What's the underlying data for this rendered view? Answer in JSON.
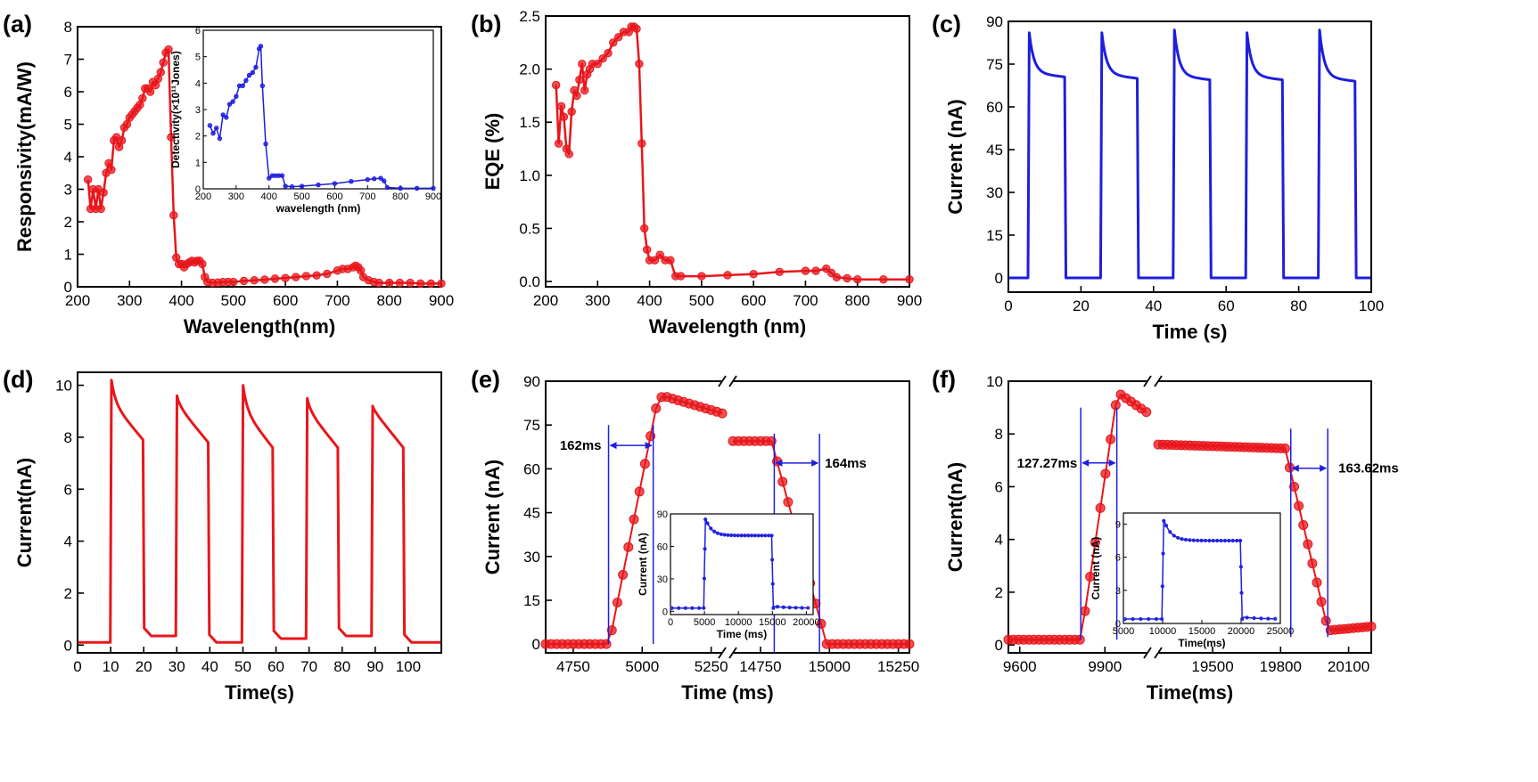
{
  "chart_data": [
    {
      "panel": "(a)",
      "type": "line",
      "xlabel": "Wavelength(nm)",
      "ylabel": "Responsivity(mA/W)",
      "xlim": [
        200,
        900
      ],
      "ylim": [
        0,
        8
      ],
      "xticks": [
        200,
        300,
        400,
        500,
        600,
        700,
        800,
        900
      ],
      "yticks": [
        0,
        1,
        2,
        3,
        4,
        5,
        6,
        7,
        8
      ],
      "color": "#e8161b",
      "markers": true,
      "series": [
        {
          "x": [
            220,
            225,
            230,
            235,
            240,
            245,
            250,
            255,
            260,
            265,
            270,
            275,
            280,
            285,
            290,
            295,
            300,
            305,
            310,
            315,
            320,
            325,
            330,
            335,
            340,
            345,
            350,
            355,
            360,
            365,
            370,
            375,
            380,
            385,
            390,
            395,
            400,
            405,
            410,
            415,
            420,
            425,
            430,
            435,
            440,
            445,
            450,
            460,
            470,
            480,
            490,
            500,
            520,
            540,
            560,
            580,
            600,
            620,
            640,
            660,
            680,
            700,
            710,
            720,
            730,
            735,
            740,
            745,
            750,
            760,
            770,
            780,
            800,
            820,
            840,
            860,
            880,
            900
          ],
          "y": [
            3.3,
            2.4,
            3.0,
            2.4,
            3.0,
            2.4,
            2.9,
            3.5,
            3.8,
            3.6,
            4.5,
            4.6,
            4.3,
            4.5,
            4.9,
            5.0,
            5.2,
            5.3,
            5.4,
            5.5,
            5.6,
            5.8,
            6.1,
            6.1,
            6.0,
            6.3,
            6.2,
            6.4,
            6.6,
            6.9,
            7.2,
            7.3,
            4.6,
            2.2,
            0.9,
            0.7,
            0.7,
            0.6,
            0.7,
            0.75,
            0.8,
            0.75,
            0.8,
            0.8,
            0.7,
            0.3,
            0.15,
            0.12,
            0.13,
            0.15,
            0.15,
            0.15,
            0.18,
            0.2,
            0.22,
            0.25,
            0.27,
            0.3,
            0.33,
            0.35,
            0.4,
            0.5,
            0.55,
            0.55,
            0.6,
            0.65,
            0.6,
            0.5,
            0.3,
            0.2,
            0.15,
            0.12,
            0.12,
            0.12,
            0.12,
            0.1,
            0.1,
            0.1
          ]
        }
      ],
      "inset": {
        "xlabel": "wavelength (nm)",
        "ylabel": "Detectivity(×10¹¹Jones)",
        "xlim": [
          200,
          900
        ],
        "ylim": [
          0,
          6
        ],
        "xticks": [
          200,
          300,
          400,
          500,
          600,
          700,
          800,
          900
        ],
        "yticks": [
          0,
          1,
          2,
          3,
          4,
          5,
          6
        ],
        "color": "#1e1edc",
        "x": [
          220,
          230,
          240,
          250,
          260,
          270,
          280,
          290,
          300,
          310,
          320,
          330,
          340,
          350,
          360,
          370,
          375,
          380,
          390,
          400,
          410,
          420,
          430,
          440,
          450,
          470,
          500,
          550,
          600,
          650,
          700,
          720,
          740,
          750,
          760,
          800,
          850,
          900
        ],
        "y": [
          2.4,
          2.1,
          2.3,
          1.9,
          2.8,
          2.7,
          3.2,
          3.3,
          3.5,
          3.9,
          3.9,
          4.1,
          4.3,
          4.4,
          4.6,
          5.3,
          5.4,
          3.9,
          1.7,
          0.4,
          0.5,
          0.5,
          0.5,
          0.5,
          0.1,
          0.08,
          0.1,
          0.15,
          0.2,
          0.28,
          0.35,
          0.38,
          0.4,
          0.3,
          0.05,
          0.02,
          0.02,
          0.02
        ]
      }
    },
    {
      "panel": "(b)",
      "type": "line",
      "xlabel": "Wavelength (nm)",
      "ylabel": "EQE (%)",
      "xlim": [
        200,
        900
      ],
      "ylim": [
        -0.05,
        2.5
      ],
      "xticks": [
        200,
        300,
        400,
        500,
        600,
        700,
        800,
        900
      ],
      "yticks": [
        0.0,
        0.5,
        1.0,
        1.5,
        2.0,
        2.5
      ],
      "ytick_labels": [
        "0.0",
        "0.5",
        "1.0",
        "1.5",
        "2.0",
        "2.5"
      ],
      "color": "#e8161b",
      "markers": true,
      "series": [
        {
          "x": [
            220,
            225,
            230,
            235,
            240,
            245,
            250,
            255,
            260,
            265,
            270,
            275,
            280,
            285,
            290,
            300,
            310,
            320,
            330,
            340,
            350,
            360,
            365,
            370,
            375,
            380,
            385,
            390,
            395,
            400,
            410,
            420,
            430,
            440,
            450,
            460,
            500,
            550,
            600,
            650,
            700,
            720,
            740,
            750,
            760,
            780,
            800,
            850,
            900
          ],
          "y": [
            1.85,
            1.3,
            1.65,
            1.55,
            1.25,
            1.2,
            1.6,
            1.8,
            1.75,
            1.9,
            2.05,
            1.8,
            1.95,
            2.0,
            2.05,
            2.05,
            2.1,
            2.15,
            2.25,
            2.3,
            2.35,
            2.35,
            2.4,
            2.4,
            2.38,
            2.05,
            1.3,
            0.5,
            0.3,
            0.2,
            0.2,
            0.25,
            0.2,
            0.2,
            0.05,
            0.05,
            0.05,
            0.06,
            0.07,
            0.09,
            0.1,
            0.1,
            0.12,
            0.08,
            0.04,
            0.03,
            0.02,
            0.02,
            0.02
          ]
        }
      ]
    },
    {
      "panel": "(c)",
      "type": "line",
      "xlabel": "Time (s)",
      "ylabel": "Current (nA)",
      "xlim": [
        0,
        100
      ],
      "ylim": [
        -5,
        90
      ],
      "xticks": [
        0,
        20,
        40,
        60,
        80,
        100
      ],
      "yticks": [
        0,
        15,
        30,
        45,
        60,
        75,
        90
      ],
      "color": "#1e1edc",
      "markers": false,
      "pulses": {
        "on": [
          5.5,
          25.5,
          45.5,
          65.5,
          85.5
        ],
        "off": [
          15.5,
          35.5,
          55.5,
          75.5,
          95.5
        ],
        "peak": [
          86,
          86,
          87,
          86,
          87
        ],
        "plateau": [
          70.5,
          70,
          69.5,
          69.5,
          69
        ],
        "baseline": 0
      }
    },
    {
      "panel": "(d)",
      "type": "line",
      "xlabel": "Time(s)",
      "ylabel": "Current(nA)",
      "xlim": [
        0,
        110
      ],
      "ylim": [
        -0.3,
        10.5
      ],
      "xticks": [
        0,
        10,
        20,
        30,
        40,
        50,
        60,
        70,
        80,
        90,
        100
      ],
      "yticks": [
        0,
        2,
        4,
        6,
        8,
        10
      ],
      "color": "#e8161b",
      "markers": false,
      "pulses": {
        "on": [
          10,
          29.8,
          49.8,
          69.2,
          89
        ],
        "off": [
          19.8,
          39.5,
          59,
          78.7,
          98.5
        ],
        "peak": [
          10.2,
          9.6,
          10.0,
          9.5,
          9.2
        ],
        "plateau": [
          7.9,
          7.8,
          7.6,
          7.6,
          7.6
        ],
        "baseline_after": [
          0.35,
          0.1,
          0.25,
          0.35,
          0.1
        ],
        "baseline": 0.1
      }
    },
    {
      "panel": "(e)",
      "type": "scatter",
      "xlabel": "Time (ms)",
      "ylabel": "Current (nA)",
      "ylim": [
        -3,
        90
      ],
      "yticks": [
        0,
        15,
        30,
        45,
        60,
        75,
        90
      ],
      "broken_x": [
        {
          "xlim": [
            4650,
            5290
          ],
          "xticks": [
            4750,
            5000,
            5250
          ]
        },
        {
          "xlim": [
            14650,
            15290
          ],
          "xticks": [
            14750,
            15000,
            15250
          ]
        }
      ],
      "color": "#e8161b",
      "rise": {
        "label": "162ms",
        "t_start": 4878,
        "t_end": 5040
      },
      "fall": {
        "label": "164ms",
        "t_start": 14800,
        "t_end": 14964
      },
      "segment1": {
        "x_start": 4650,
        "x_step": 20,
        "t_on": 4880,
        "t_peak": 5075,
        "peak": 85,
        "t_end": 5290,
        "end_val": 79
      },
      "segment2": {
        "x_start": 14650,
        "x_step": 20,
        "level_start": 69.5,
        "t_fall": 14790,
        "t_zero": 14990,
        "t_end": 15290
      },
      "inset": {
        "xlabel": "Time (ms)",
        "ylabel": "Current (nA)",
        "xlim": [
          0,
          21000
        ],
        "ylim": [
          -3,
          90
        ],
        "xticks": [
          0,
          5000,
          10000,
          15000,
          20000
        ],
        "yticks": [
          0,
          30,
          60,
          90
        ],
        "color": "#1e1edc",
        "on": 4900,
        "off": 14900,
        "peak": 85,
        "plateau": 70,
        "low": 3
      }
    },
    {
      "panel": "(f)",
      "type": "scatter",
      "xlabel": "Time(ms)",
      "ylabel": "Current(nA)",
      "ylim": [
        -0.3,
        10
      ],
      "yticks": [
        0,
        2,
        4,
        6,
        8,
        10
      ],
      "broken_x": [
        {
          "xlim": [
            9560,
            10050
          ],
          "xticks": [
            9600,
            9900
          ]
        },
        {
          "xlim": [
            19260,
            20200
          ],
          "xticks": [
            19500,
            19800,
            20100
          ]
        }
      ],
      "color": "#e8161b",
      "rise": {
        "label": "127.27ms",
        "t_start": 9815,
        "t_end": 9942
      },
      "fall": {
        "label": "163.62ms",
        "t_start": 19845,
        "t_end": 20008
      },
      "segment1": {
        "x_start": 9560,
        "x_step": 18,
        "base": 0.2,
        "t_on": 9815,
        "t_peak": 9955,
        "peak": 9.5,
        "t_end": 10050,
        "end_val": 8.8
      },
      "segment2": {
        "x_start": 19260,
        "x_step": 20,
        "level_start": 7.6,
        "level_end": 7.45,
        "t_fall": 19820,
        "t_zero": 20010,
        "low": 0.55,
        "t_end": 20200,
        "end_val": 0.7
      },
      "inset": {
        "xlabel": "Time(ms)",
        "ylabel": "Current (nA)",
        "xlim": [
          5000,
          25000
        ],
        "ylim": [
          0,
          10
        ],
        "xticks": [
          5000,
          10000,
          15000,
          20000,
          25000
        ],
        "yticks": [
          0,
          3,
          6,
          9
        ],
        "color": "#1e1edc",
        "on": 9900,
        "off": 19900,
        "peak": 9.3,
        "plateau": 7.5,
        "low": 0.4
      }
    }
  ]
}
